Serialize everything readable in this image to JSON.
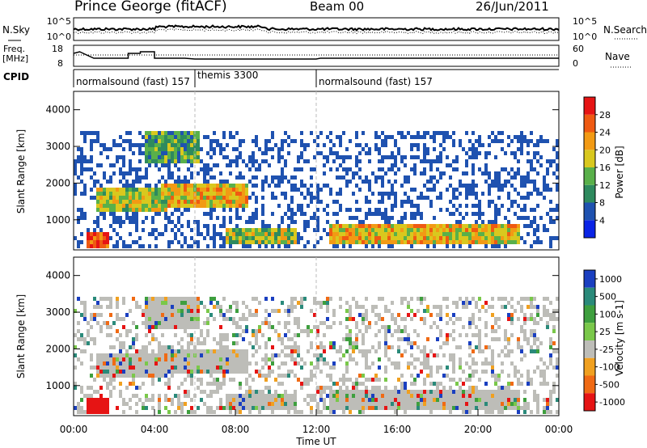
{
  "header": {
    "station": "Prince George (fitACF)",
    "beam": "Beam 00",
    "date": "26/Jun/2011"
  },
  "panels": {
    "nsky": {
      "label": "N.Sky",
      "tick_top": "10^5",
      "tick_bottom": "10^0",
      "right_label": "N.Search"
    },
    "freq": {
      "label_line1": "Freq.",
      "label_line2": "[MHz]",
      "tick_top": "18",
      "tick_bottom": "8",
      "right_tick_top": "60",
      "right_tick_bottom": "0",
      "right_label": "Nave"
    },
    "cpid": {
      "label": "CPID",
      "segments": [
        {
          "text": "normalsound (fast) 157",
          "start_hour": 0.0
        },
        {
          "text": "themis 3300",
          "start_hour": 6.0
        },
        {
          "text": "normalsound (fast) 157",
          "start_hour": 12.0
        }
      ]
    }
  },
  "chart_data": [
    {
      "type": "heatmap",
      "name": "power",
      "ylabel": "Slant Range [km]",
      "xlim": [
        0,
        24
      ],
      "ylim": [
        180,
        4500
      ],
      "yticks": [
        1000,
        2000,
        3000,
        4000
      ],
      "colorbar": {
        "label": "Power [dB]",
        "ticks": [
          "4",
          "8",
          "12",
          "16",
          "20",
          "24",
          "28"
        ],
        "colors": [
          "#0a24e6",
          "#1f52b0",
          "#2e8a5e",
          "#59b04a",
          "#d9c81e",
          "#f29a14",
          "#ef5a12",
          "#e61414"
        ]
      }
    },
    {
      "type": "heatmap",
      "name": "velocity",
      "ylabel": "Slant Range [km]",
      "xlim": [
        0,
        24
      ],
      "ylim": [
        180,
        4500
      ],
      "yticks": [
        1000,
        2000,
        3000,
        4000
      ],
      "xlabel": "Time UT",
      "xticks": [
        "00:00",
        "04:00",
        "08:00",
        "12:00",
        "16:00",
        "20:00",
        "00:00"
      ],
      "colorbar": {
        "label": "Velocity [m s-1]",
        "ticks": [
          "1000",
          "500",
          "100",
          "25",
          "-25",
          "-100",
          "-500",
          "-1000"
        ],
        "colors": [
          "#1a3fc0",
          "#2a8a7a",
          "#3e9f3e",
          "#7ac84a",
          "#bdbdb8",
          "#f0a020",
          "#f06a14",
          "#e61414"
        ]
      }
    }
  ]
}
